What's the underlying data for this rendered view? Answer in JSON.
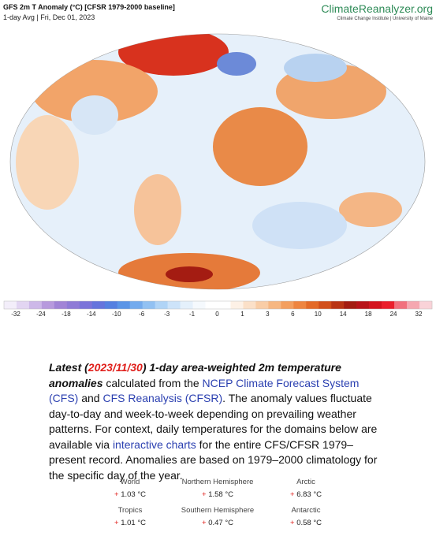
{
  "header": {
    "title": "GFS 2m T Anomaly (°C) [CFSR 1979-2000 baseline]",
    "subtitle": "1-day Avg | Fri, Dec 01, 2023",
    "brand": "ClimateReanalyzer.org",
    "tagline": "Climate Change Institute | University of Maine"
  },
  "colorbar": {
    "labels": [
      -32,
      -24,
      -18,
      -14,
      -10,
      -6,
      -3,
      -1,
      0,
      1,
      3,
      6,
      10,
      14,
      18,
      24,
      32
    ],
    "colors": [
      "#f3eefa",
      "#e2d5f2",
      "#cdb8e8",
      "#b79add",
      "#a184d6",
      "#8f7bd6",
      "#7b74d9",
      "#6574dc",
      "#5580e0",
      "#5b95e6",
      "#74abed",
      "#92c1f2",
      "#b0d4f6",
      "#cde3f9",
      "#e4f0fb",
      "#f5f9fd",
      "#ffffff",
      "#ffffff",
      "#fdf1e6",
      "#fbe0c8",
      "#f9cda6",
      "#f6b782",
      "#f39f5f",
      "#ee8540",
      "#e36a28",
      "#d14f1b",
      "#b93515",
      "#a31d12",
      "#b8141a",
      "#d4141f",
      "#ea1f2c",
      "#f1707d",
      "#f5a7b0",
      "#f9d3d8"
    ]
  },
  "article": {
    "lead": "Latest (",
    "date": "2023/11/30",
    "lead_end": ") 1-day area-weighted 2m temperature anomalies",
    "t1": " calculated from the ",
    "link1": "NCEP Climate Forecast System (CFS)",
    "t2": " and ",
    "link2": "CFS Reanalysis (CFSR)",
    "t3": ". The anomaly values fluctuate day-to-day and week-to-week depending on prevailing weather patterns. For context, daily temperatures for the domains below are available via ",
    "link3": "interactive charts",
    "t4": " for the entire CFS/CFSR 1979–present record. Anomalies are based on 1979–2000 climatology for the specific day of the year."
  },
  "stats": [
    {
      "name": "World",
      "sign": "+",
      "value": "1.03 °C"
    },
    {
      "name": "Northern Hemisphere",
      "sign": "+",
      "value": "1.58 °C"
    },
    {
      "name": "Arctic",
      "sign": "+",
      "value": "6.83 °C"
    },
    {
      "name": "Tropics",
      "sign": "+",
      "value": "1.01 °C"
    },
    {
      "name": "Southern Hemisphere",
      "sign": "+",
      "value": "0.47 °C"
    },
    {
      "name": "Antarctic",
      "sign": "+",
      "value": "0.58 °C"
    }
  ]
}
